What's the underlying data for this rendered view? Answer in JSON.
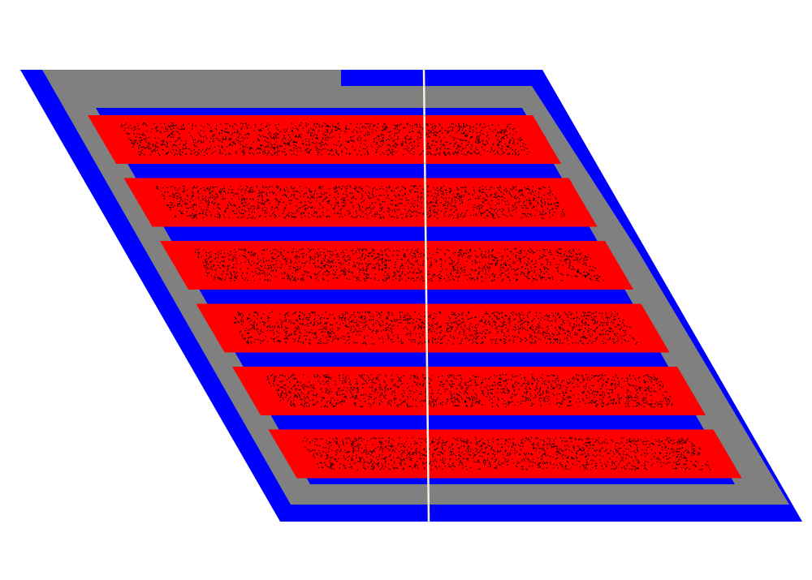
{
  "colors": {
    "background": "#ffffff",
    "frame_outer": "#0000ff",
    "frame_inner": "#808080",
    "bar_fill": "#ff0000",
    "bar_gap": "#0000ff",
    "speckle": "#000000",
    "divider": "#f5f0dc"
  },
  "rows": [
    {
      "id": "row-1"
    },
    {
      "id": "row-2"
    },
    {
      "id": "row-3"
    },
    {
      "id": "row-4"
    },
    {
      "id": "row-5"
    },
    {
      "id": "row-6"
    }
  ]
}
